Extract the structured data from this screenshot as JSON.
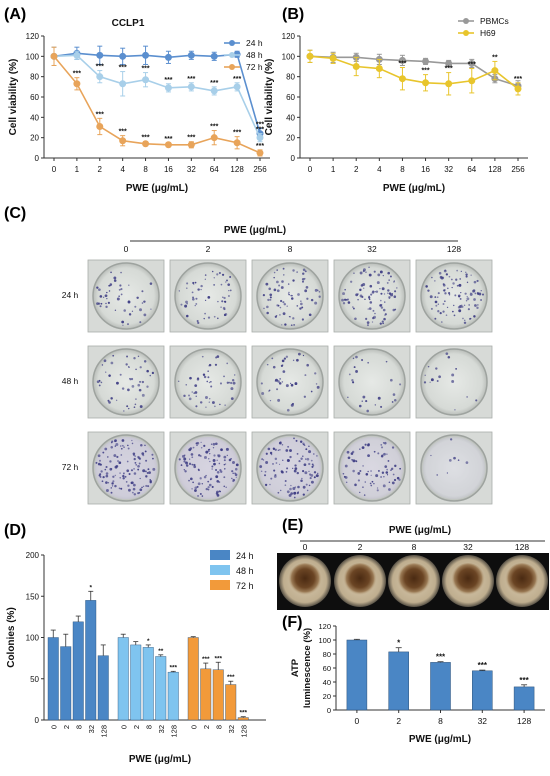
{
  "colors": {
    "c24": "#5b8fcf",
    "c48": "#a8cfe9",
    "c72": "#e8a45a",
    "pbmc": "#999999",
    "h69": "#e8c52c",
    "bar24": "#4a86c5",
    "bar48": "#7fc4ef",
    "bar72": "#f29a3a",
    "atp": "#4a86c5",
    "axis": "#333333"
  },
  "panels": {
    "a_label": "(A)",
    "b_label": "(B)",
    "c_label": "(C)",
    "d_label": "(D)",
    "e_label": "(E)",
    "f_label": "(F)"
  },
  "chart_data": [
    {
      "id": "A",
      "type": "line",
      "title": "CCLP1",
      "xlabel": "PWE (μg/mL)",
      "ylabel": "Cell viability (%)",
      "categories": [
        "0",
        "1",
        "2",
        "4",
        "8",
        "16",
        "32",
        "64",
        "128",
        "256"
      ],
      "ylim": [
        0,
        120
      ],
      "yticks": [
        "0",
        "20",
        "40",
        "60",
        "80",
        "100",
        "120"
      ],
      "legend_position": "top-right",
      "series": [
        {
          "name": "24 h",
          "color_key": "c24",
          "values": [
            100,
            103,
            101,
            100,
            101,
            99,
            101,
            100,
            102,
            24
          ],
          "errors": [
            9,
            6,
            9,
            8,
            9,
            6,
            4,
            4,
            3,
            5
          ],
          "sig": [
            "",
            "",
            "",
            "",
            "",
            "",
            "",
            "",
            "",
            "***"
          ]
        },
        {
          "name": "48 h",
          "color_key": "c48",
          "values": [
            100,
            101,
            80,
            73,
            77,
            69,
            70,
            66,
            70,
            20
          ],
          "errors": [
            9,
            4,
            6,
            12,
            7,
            4,
            4,
            4,
            4,
            4
          ],
          "sig": [
            "",
            "",
            "***",
            "***",
            "***",
            "***",
            "***",
            "***",
            "***",
            "***"
          ]
        },
        {
          "name": "72 h",
          "color_key": "c72",
          "values": [
            100,
            73,
            31,
            17,
            14,
            13,
            13,
            20,
            15,
            5
          ],
          "errors": [
            9,
            6,
            8,
            5,
            2,
            2,
            3,
            7,
            6,
            3
          ],
          "sig": [
            "",
            "***",
            "***",
            "***",
            "***",
            "***",
            "***",
            "***",
            "***",
            "***"
          ]
        }
      ]
    },
    {
      "id": "B",
      "type": "line",
      "title": "",
      "xlabel": "PWE (μg/mL)",
      "ylabel": "Cell viability (%)",
      "categories": [
        "0",
        "1",
        "2",
        "4",
        "8",
        "16",
        "32",
        "64",
        "128",
        "256"
      ],
      "ylim": [
        0,
        120
      ],
      "yticks": [
        "0",
        "20",
        "40",
        "60",
        "80",
        "100",
        "120"
      ],
      "legend_position": "top-right",
      "series": [
        {
          "name": "PBMCs",
          "color_key": "pbmc",
          "values": [
            100,
            99,
            99,
            97,
            96,
            95,
            93,
            93,
            78,
            71
          ],
          "errors": [
            6,
            5,
            4,
            5,
            5,
            3,
            3,
            4,
            4,
            5
          ],
          "sig": [
            "",
            "",
            "",
            "",
            "",
            "",
            "",
            "",
            "",
            ""
          ]
        },
        {
          "name": "H69",
          "color_key": "h69",
          "values": [
            100,
            98,
            90,
            88,
            78,
            74,
            73,
            76,
            86,
            68
          ],
          "errors": [
            6,
            5,
            9,
            9,
            11,
            8,
            11,
            12,
            9,
            6
          ],
          "sig": [
            "",
            "",
            "",
            "",
            "***",
            "***",
            "***",
            "***",
            "**",
            "***"
          ]
        }
      ]
    },
    {
      "id": "D",
      "type": "bar",
      "title": "",
      "xlabel": "PWE (μg/mL)",
      "ylabel": "Colonies (%)",
      "ylim": [
        0,
        200
      ],
      "yticks": [
        "0",
        "50",
        "100",
        "150",
        "200"
      ],
      "legend_position": "top-right",
      "groups": [
        {
          "name": "24 h",
          "color_key": "bar24",
          "categories": [
            "0",
            "2",
            "8",
            "32",
            "128"
          ],
          "values": [
            100,
            89,
            119,
            145,
            78
          ],
          "errors": [
            9,
            15,
            7,
            11,
            13
          ],
          "sig": [
            "",
            "",
            "",
            "*",
            ""
          ]
        },
        {
          "name": "48 h",
          "color_key": "bar48",
          "categories": [
            "0",
            "2",
            "8",
            "32",
            "128"
          ],
          "values": [
            100,
            91,
            88,
            77,
            58
          ],
          "errors": [
            4,
            4,
            3,
            2,
            1
          ],
          "sig": [
            "",
            "",
            "*",
            "**",
            "***"
          ]
        },
        {
          "name": "72 h",
          "color_key": "bar72",
          "categories": [
            "0",
            "2",
            "8",
            "32",
            "128"
          ],
          "values": [
            100,
            62,
            61,
            43,
            3
          ],
          "errors": [
            1,
            7,
            9,
            4,
            1
          ],
          "sig": [
            "",
            "***",
            "***",
            "***",
            "***"
          ]
        }
      ]
    },
    {
      "id": "F",
      "type": "bar",
      "title": "",
      "xlabel": "PWE (μg/mL)",
      "ylabel_line1": "ATP",
      "ylabel_line2": "luminescence (%)",
      "categories": [
        "0",
        "2",
        "8",
        "32",
        "128"
      ],
      "values": [
        100,
        83,
        68,
        56,
        33
      ],
      "errors": [
        1,
        6,
        1,
        1,
        3
      ],
      "sig": [
        "",
        "*",
        "***",
        "***",
        "***"
      ],
      "ylim": [
        0,
        120
      ],
      "yticks": [
        "0",
        "20",
        "40",
        "60",
        "80",
        "100",
        "120"
      ]
    }
  ],
  "panel_c": {
    "header": "PWE (μg/mL)",
    "columns": [
      "0",
      "2",
      "8",
      "32",
      "128"
    ],
    "rows": [
      "24 h",
      "48 h",
      "72 h"
    ],
    "densities": [
      [
        0.3,
        0.35,
        0.45,
        0.55,
        0.6
      ],
      [
        0.3,
        0.3,
        0.25,
        0.15,
        0.1
      ],
      [
        0.75,
        0.7,
        0.65,
        0.45,
        0.05
      ]
    ]
  },
  "panel_e": {
    "header": "PWE (μg/mL)",
    "columns": [
      "0",
      "2",
      "8",
      "32",
      "128"
    ]
  }
}
